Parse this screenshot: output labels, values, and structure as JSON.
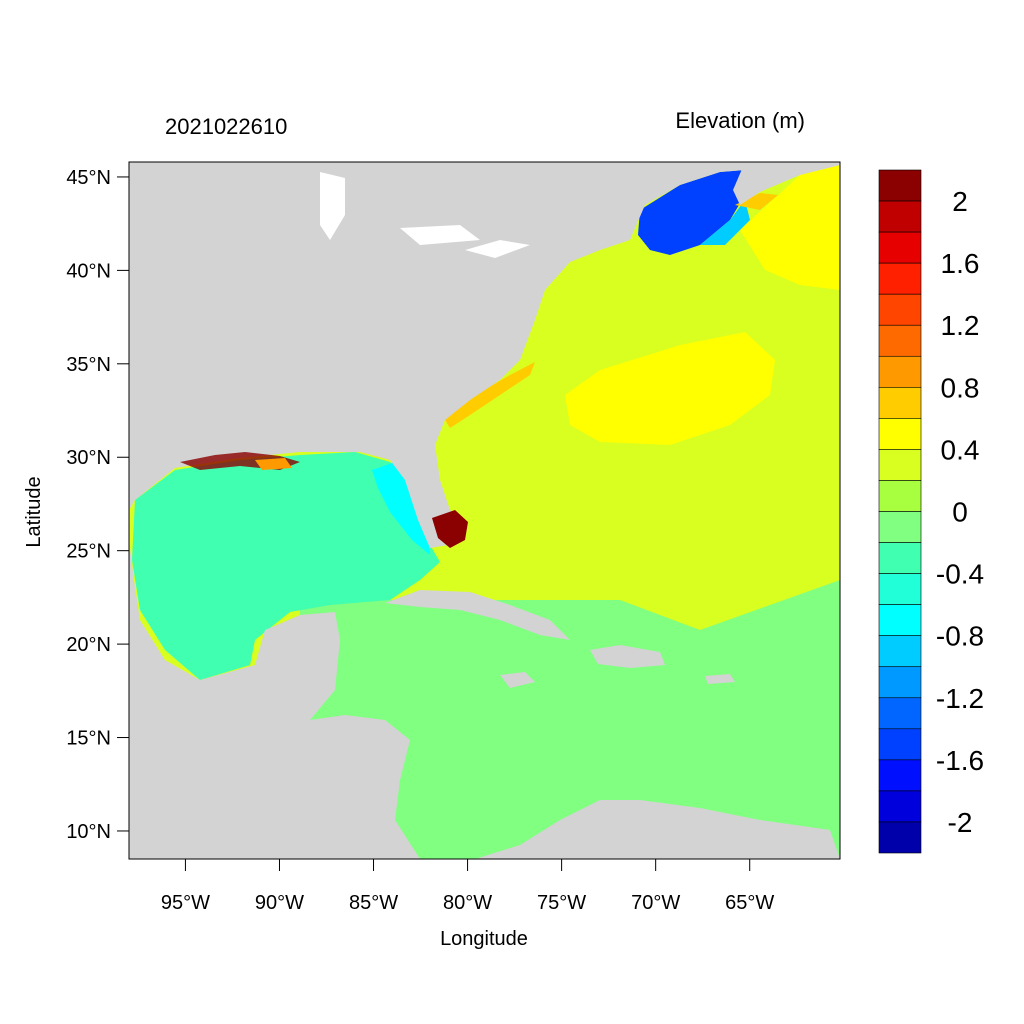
{
  "header": {
    "timestamp": "2021022610",
    "variable": "Elevation (m)"
  },
  "axes": {
    "xlabel": "Longitude",
    "ylabel": "Latitude",
    "lon_ticks": [
      "95°W",
      "90°W",
      "85°W",
      "80°W",
      "75°W",
      "70°W",
      "65°W"
    ],
    "lat_ticks": [
      "45°N",
      "40°N",
      "35°N",
      "30°N",
      "25°N",
      "20°N",
      "15°N",
      "10°N"
    ],
    "lon_values": [
      -95,
      -90,
      -85,
      -80,
      -75,
      -70,
      -65
    ],
    "lat_values": [
      45,
      40,
      35,
      30,
      25,
      20,
      15,
      10
    ],
    "lon_range": [
      -98,
      -60.2
    ],
    "lat_range": [
      8.5,
      45.8
    ]
  },
  "colorbar": {
    "labels": [
      "2",
      "1.6",
      "1.2",
      "0.8",
      "0.4",
      "0",
      "-0.4",
      "-0.8",
      "-1.2",
      "-1.6",
      "-2"
    ],
    "colors": [
      "#8b0000",
      "#c00000",
      "#e60000",
      "#ff2000",
      "#ff4500",
      "#ff6a00",
      "#ff9900",
      "#ffcc00",
      "#ffff00",
      "#d8ff20",
      "#a8ff40",
      "#80ff80",
      "#40ffb0",
      "#20ffd8",
      "#00ffff",
      "#00ccff",
      "#0099ff",
      "#0066ff",
      "#0040ff",
      "#0010ff",
      "#0000dd",
      "#0000aa"
    ]
  },
  "map": {
    "land_color": "#d3d3d3",
    "ocean_colors": {
      "atlantic": "#d8ff20",
      "sargasso": "#ffff00",
      "caribbean": "#80ff80",
      "gulf": "#40ffb0",
      "gulf_maine": "#0040ff",
      "florida_surge": "#8b0000"
    }
  }
}
